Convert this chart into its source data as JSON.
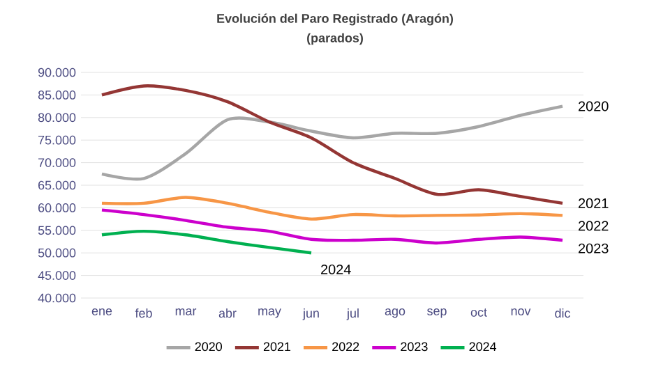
{
  "chart_data": {
    "type": "line",
    "title": "Evolución del Paro Registrado (Aragón)",
    "subtitle": "(parados)",
    "categories": [
      "ene",
      "feb",
      "mar",
      "abr",
      "may",
      "jun",
      "jul",
      "ago",
      "sep",
      "oct",
      "nov",
      "dic"
    ],
    "series": [
      {
        "name": "2020",
        "color": "#a6a6a6",
        "values": [
          67500,
          66500,
          72000,
          79500,
          79000,
          77000,
          75500,
          76500,
          76500,
          78000,
          80500,
          82500
        ]
      },
      {
        "name": "2021",
        "color": "#943634",
        "values": [
          85000,
          87000,
          86000,
          83500,
          79000,
          75500,
          70000,
          66500,
          63000,
          64000,
          62500,
          61000
        ]
      },
      {
        "name": "2022",
        "color": "#f79646",
        "values": [
          61000,
          61000,
          62300,
          61000,
          59000,
          57500,
          58500,
          58200,
          58300,
          58400,
          58700,
          58300
        ]
      },
      {
        "name": "2023",
        "color": "#cc00cc",
        "values": [
          59500,
          58500,
          57200,
          55700,
          54800,
          53000,
          52800,
          53000,
          52200,
          53000,
          53500,
          52800
        ]
      },
      {
        "name": "2024",
        "color": "#00b050",
        "values": [
          54000,
          54800,
          54000,
          52500,
          51200,
          50000,
          null,
          null,
          null,
          null,
          null,
          null
        ]
      }
    ],
    "ylim": [
      40000,
      90000
    ],
    "yticks": [
      {
        "value": 40000,
        "label": "40.000"
      },
      {
        "value": 45000,
        "label": "45.000"
      },
      {
        "value": 50000,
        "label": "50.000"
      },
      {
        "value": 55000,
        "label": "55.000"
      },
      {
        "value": 60000,
        "label": "60.000"
      },
      {
        "value": 65000,
        "label": "65.000"
      },
      {
        "value": 70000,
        "label": "70.000"
      },
      {
        "value": 75000,
        "label": "75.000"
      },
      {
        "value": 80000,
        "label": "80.000"
      },
      {
        "value": 85000,
        "label": "85.000"
      },
      {
        "value": 90000,
        "label": "90.000"
      }
    ],
    "grid": "y",
    "legend": "bottom",
    "marker": "none",
    "line_style": "solid"
  }
}
